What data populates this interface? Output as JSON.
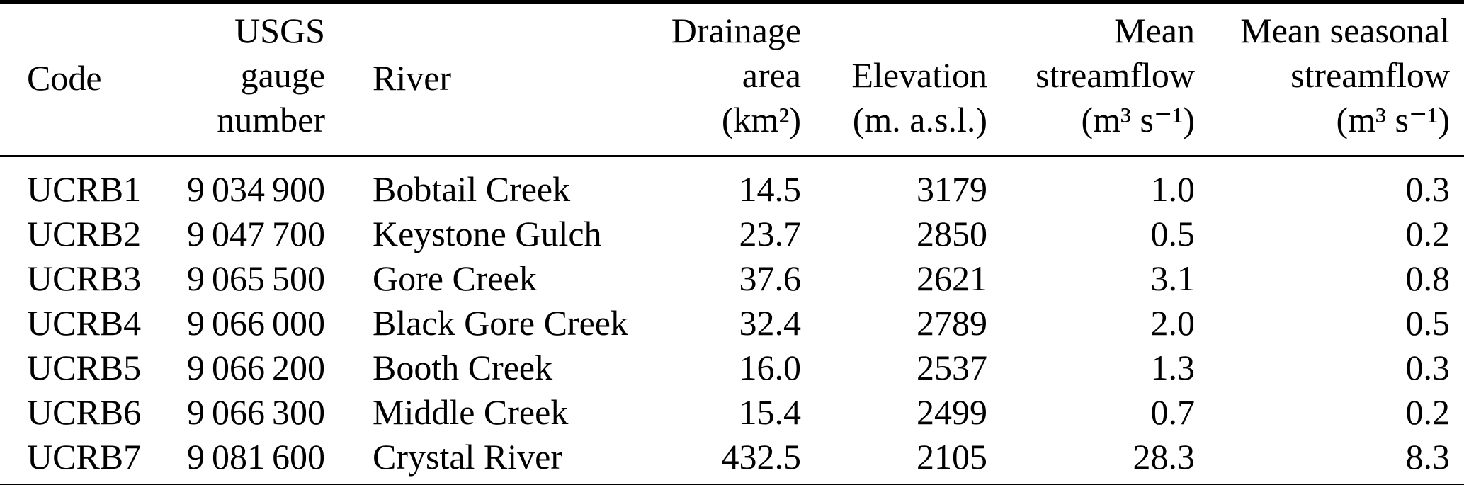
{
  "header": {
    "code": "Code",
    "gauge": "USGS\ngauge\nnumber",
    "river": "River",
    "drainage": "Drainage\narea\n(km²)",
    "elevation": "Elevation\n(m. a.s.l.)",
    "mean_streamflow": "Mean\nstreamflow\n(m³ s⁻¹)",
    "mean_seasonal_streamflow": "Mean seasonal\nstreamflow\n(m³ s⁻¹)"
  },
  "rows": [
    {
      "code": "UCRB1",
      "gauge": "9 034 900",
      "river": "Bobtail Creek",
      "drainage": "14.5",
      "elevation": "3179",
      "mean_streamflow": "1.0",
      "mean_seasonal_streamflow": "0.3"
    },
    {
      "code": "UCRB2",
      "gauge": "9 047 700",
      "river": "Keystone Gulch",
      "drainage": "23.7",
      "elevation": "2850",
      "mean_streamflow": "0.5",
      "mean_seasonal_streamflow": "0.2"
    },
    {
      "code": "UCRB3",
      "gauge": "9 065 500",
      "river": "Gore Creek",
      "drainage": "37.6",
      "elevation": "2621",
      "mean_streamflow": "3.1",
      "mean_seasonal_streamflow": "0.8"
    },
    {
      "code": "UCRB4",
      "gauge": "9 066 000",
      "river": "Black Gore Creek",
      "drainage": "32.4",
      "elevation": "2789",
      "mean_streamflow": "2.0",
      "mean_seasonal_streamflow": "0.5"
    },
    {
      "code": "UCRB5",
      "gauge": "9 066 200",
      "river": "Booth Creek",
      "drainage": "16.0",
      "elevation": "2537",
      "mean_streamflow": "1.3",
      "mean_seasonal_streamflow": "0.3"
    },
    {
      "code": "UCRB6",
      "gauge": "9 066 300",
      "river": "Middle Creek",
      "drainage": "15.4",
      "elevation": "2499",
      "mean_streamflow": "0.7",
      "mean_seasonal_streamflow": "0.2"
    },
    {
      "code": "UCRB7",
      "gauge": "9 081 600",
      "river": "Crystal River",
      "drainage": "432.5",
      "elevation": "2105",
      "mean_streamflow": "28.3",
      "mean_seasonal_streamflow": "8.3"
    }
  ]
}
